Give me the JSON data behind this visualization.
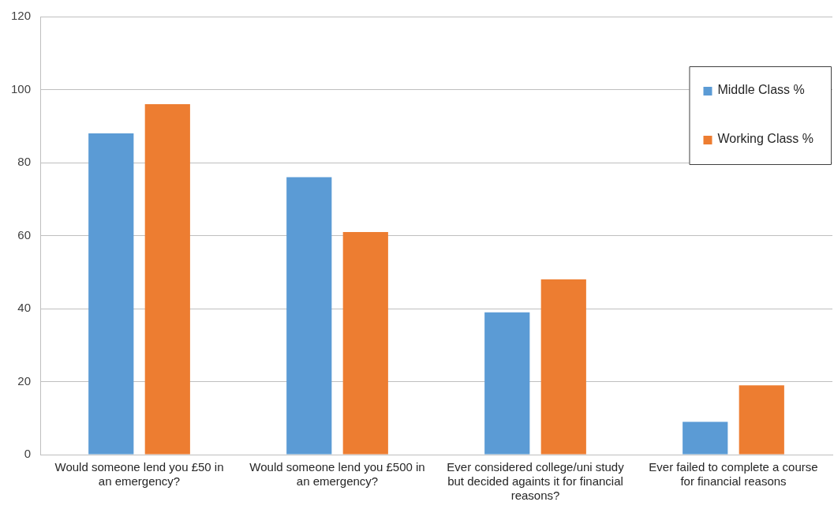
{
  "chart_data": {
    "type": "bar",
    "categories": [
      "Would someone lend you £50 in an emergency?",
      "Would someone lend you £500 in an emergency?",
      "Ever considered college/uni study but decided againts it for financial reasons?",
      "Ever failed to complete a course for financial reasons"
    ],
    "series": [
      {
        "name": "Middle Class %",
        "color": "#5b9bd5",
        "values": [
          88,
          76,
          39,
          9
        ]
      },
      {
        "name": "Working Class %",
        "color": "#ed7d31",
        "values": [
          96,
          61,
          48,
          19
        ]
      }
    ],
    "ylim": [
      0,
      120
    ],
    "yticks": [
      0,
      20,
      40,
      60,
      80,
      100,
      120
    ],
    "grid": "y",
    "legend": "top right"
  }
}
